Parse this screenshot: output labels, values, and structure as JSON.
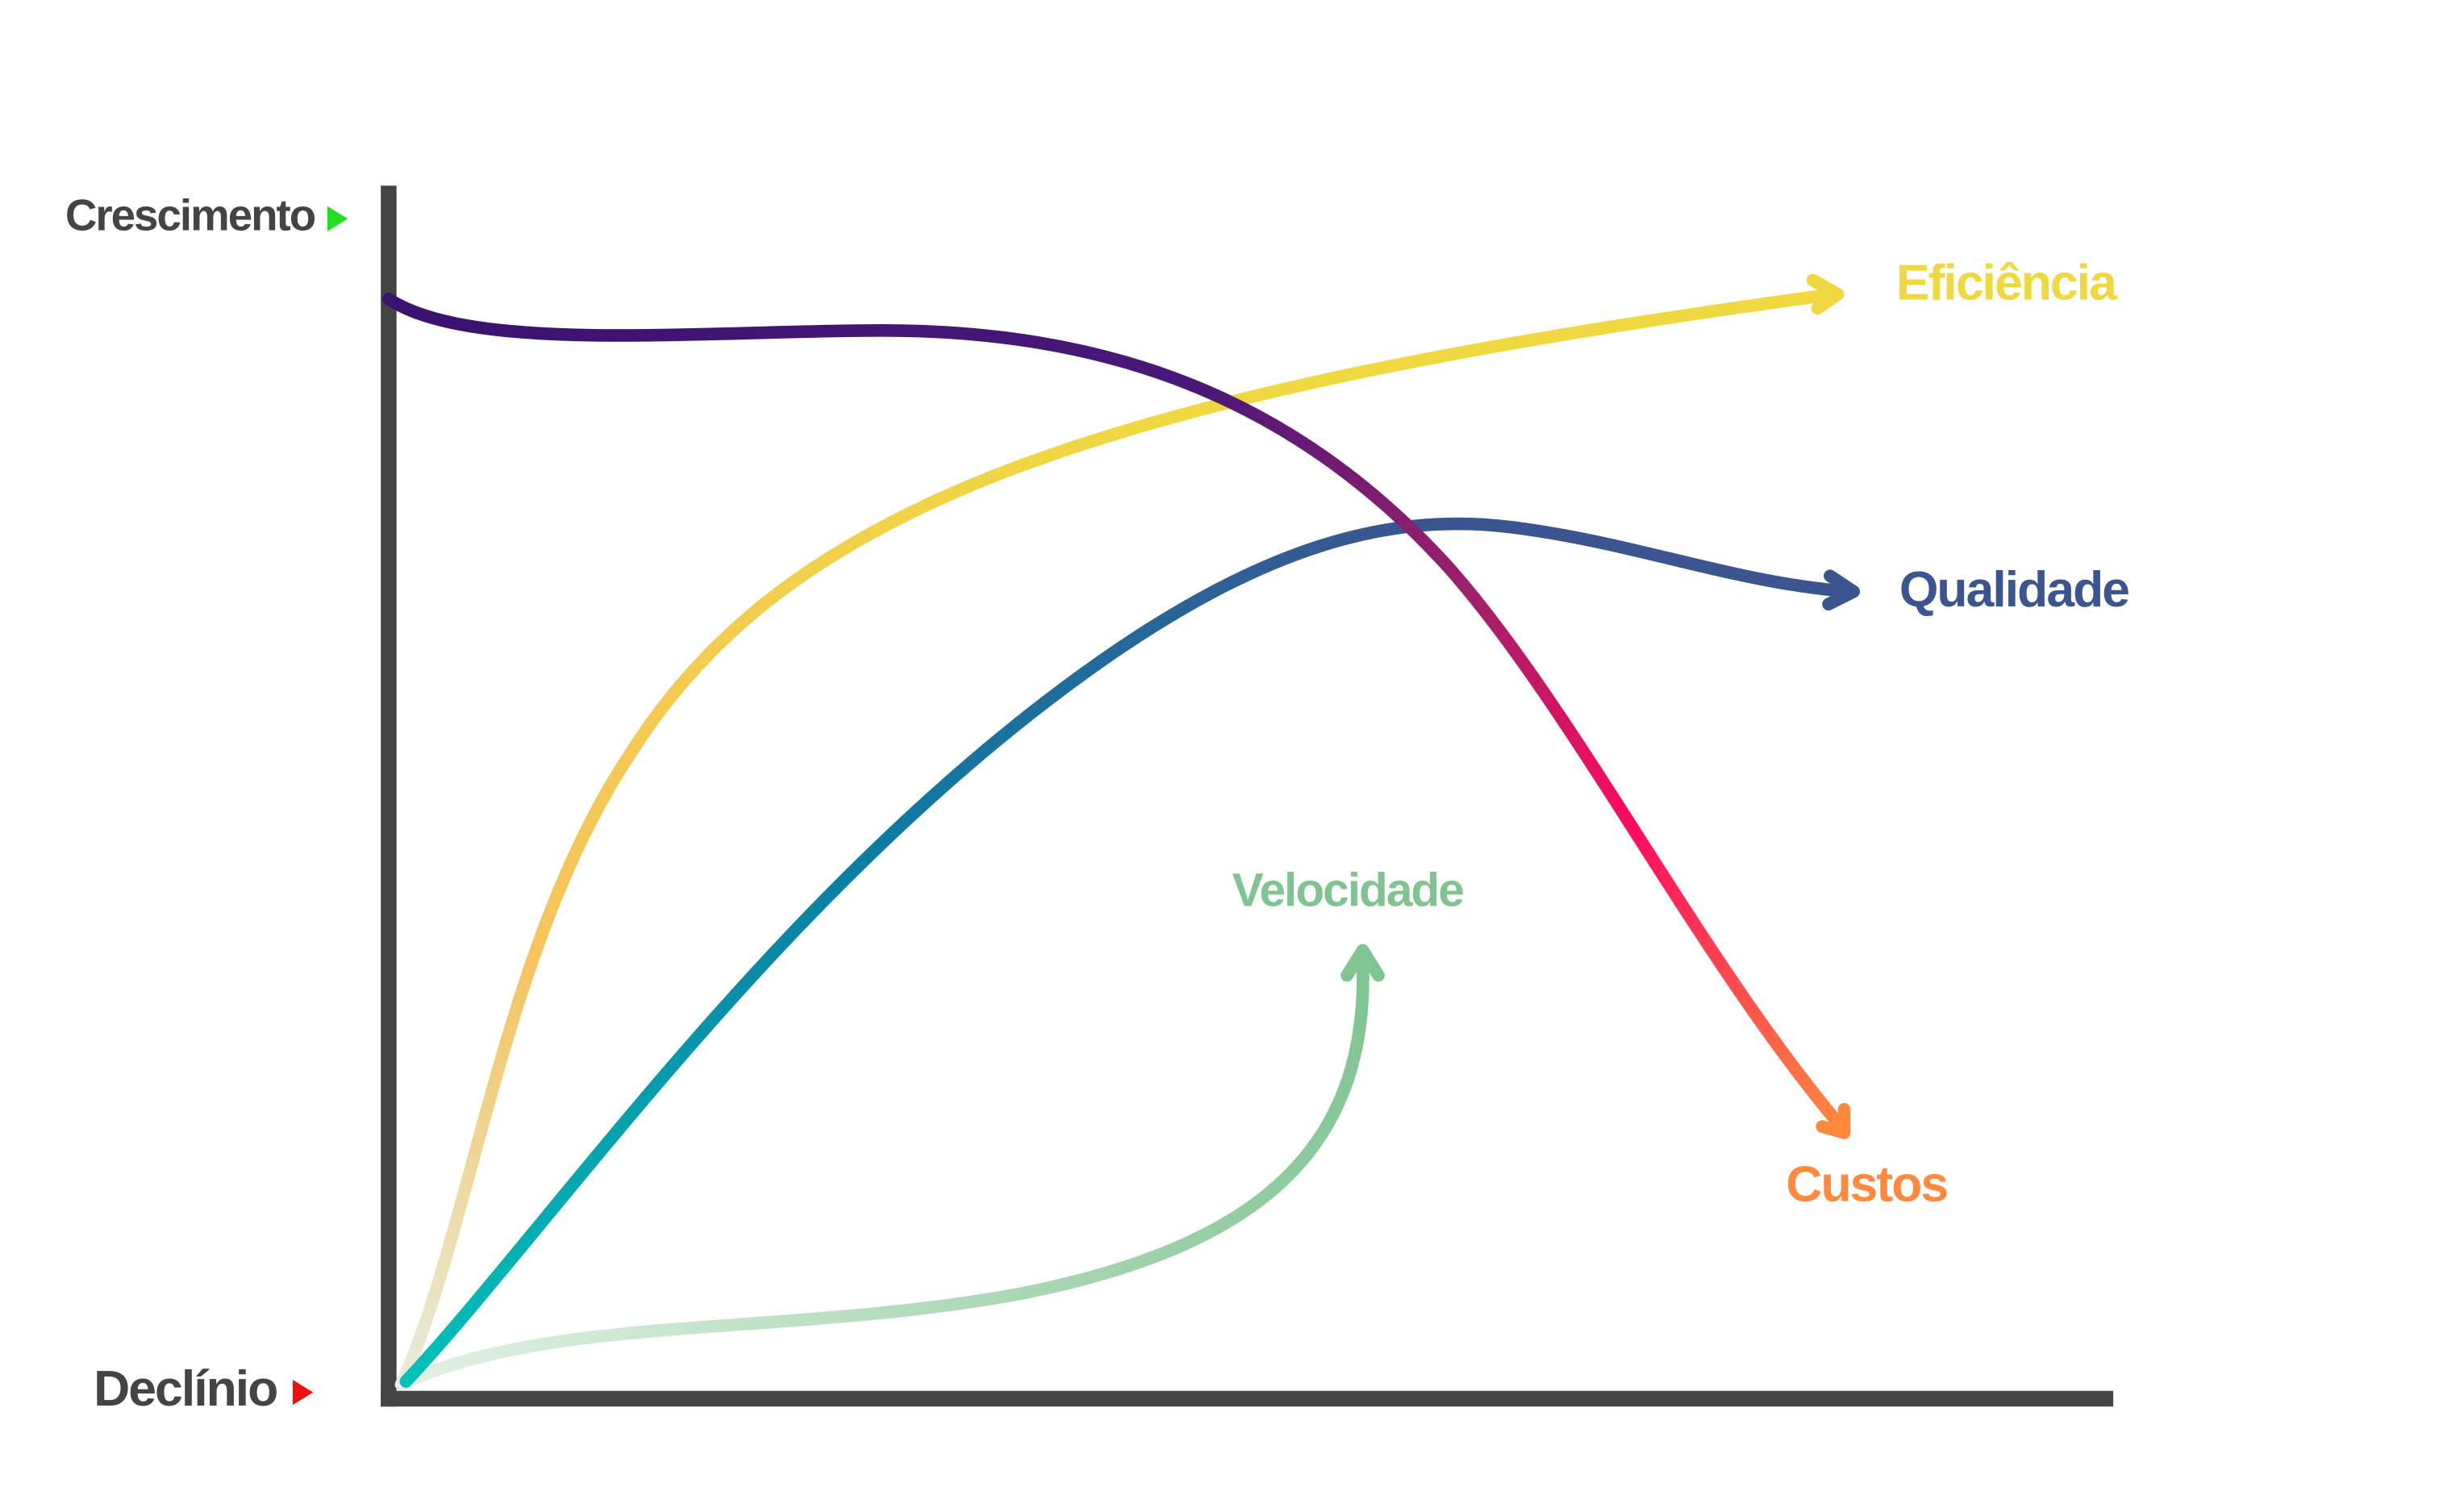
{
  "axis": {
    "top_label": "Crescimento",
    "bottom_label": "Declínio"
  },
  "curves": [
    {
      "label": "Eficiência"
    },
    {
      "label": "Qualidade"
    },
    {
      "label": "Velocidade"
    },
    {
      "label": "Custos"
    }
  ]
}
